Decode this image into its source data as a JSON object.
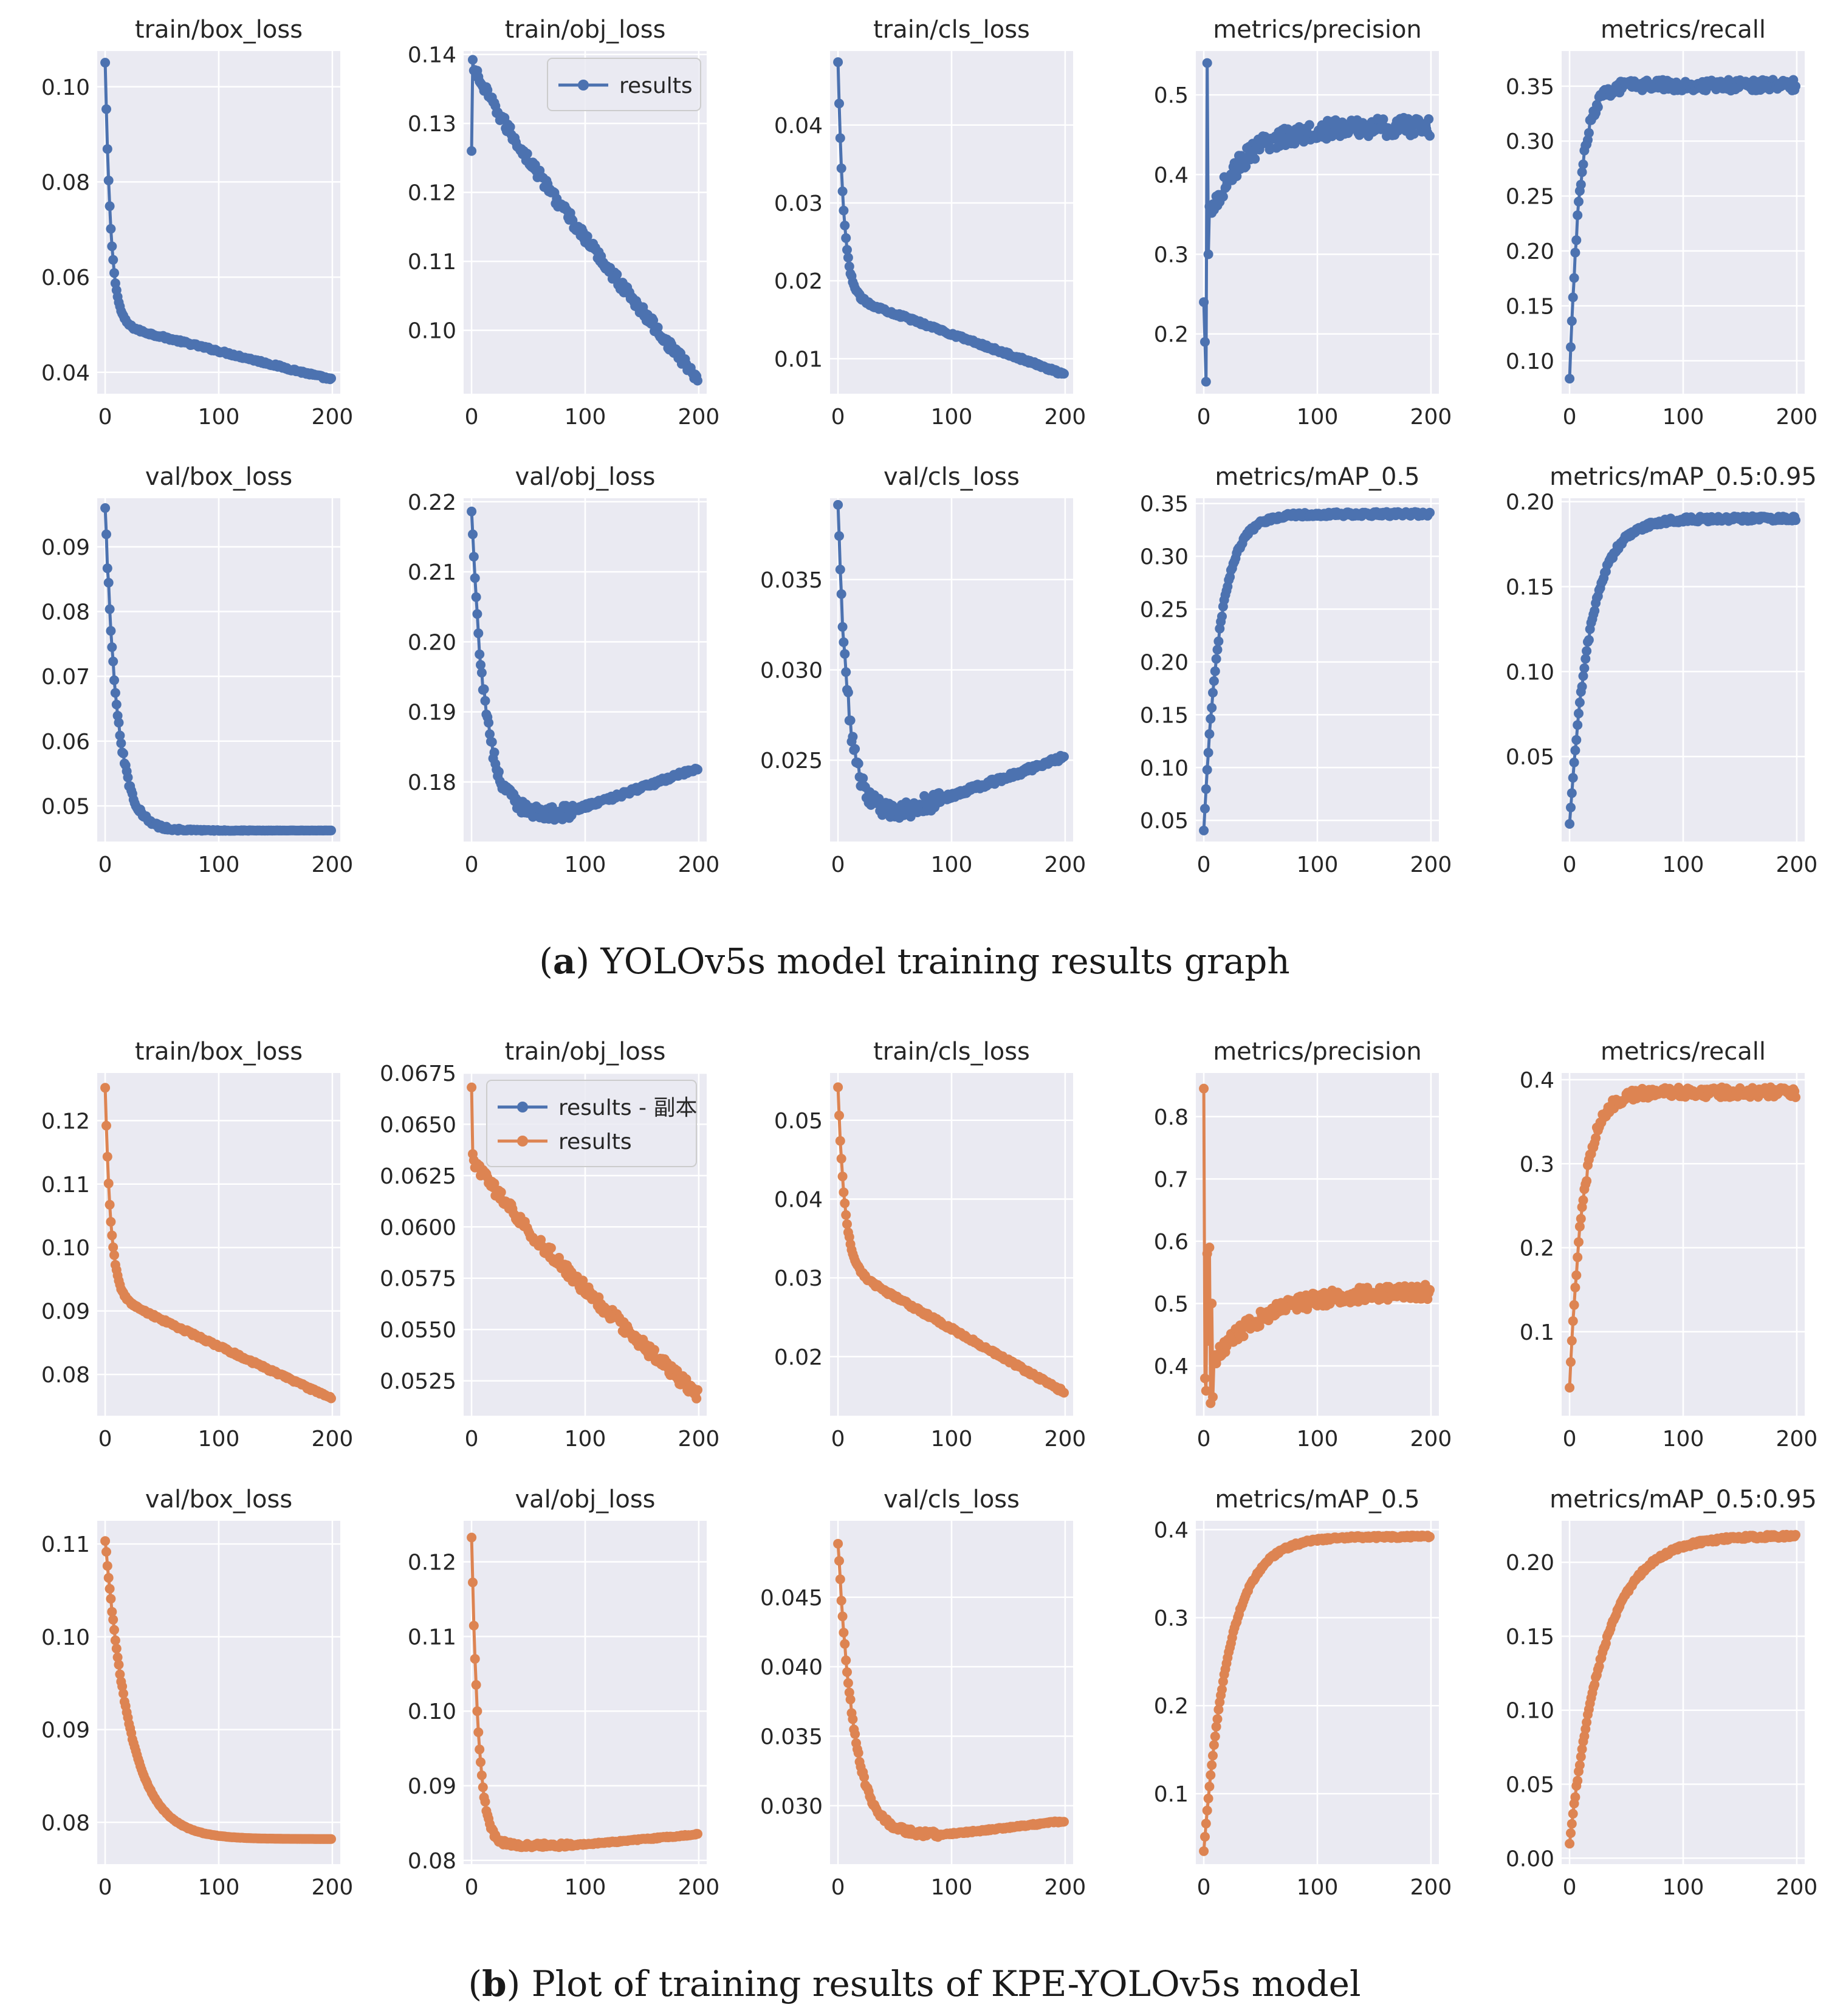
{
  "figure": {
    "sections": [
      {
        "id": "a",
        "caption_letter": "a",
        "caption_text": "YOLOv5s model training results graph",
        "color": "#4c72b0",
        "legend": [
          "results"
        ]
      },
      {
        "id": "b",
        "caption_letter": "b",
        "caption_text": "Plot of training results of KPE-YOLOv5s model",
        "color": "#dd8452",
        "legend": [
          "results - 副本",
          "results"
        ]
      }
    ],
    "colors": {
      "blue": "#4c72b0",
      "orange": "#dd8452",
      "panel_bg": "#eaeaf2",
      "grid": "#ffffff"
    }
  },
  "chart_data": [
    {
      "section": "a",
      "panel": 1,
      "type": "line",
      "title": "train/box_loss",
      "xlabel": "",
      "ylabel": "",
      "xlim": [
        -7,
        207
      ],
      "ylim": [
        0.0355,
        0.1075
      ],
      "xticks": [
        0,
        100,
        200
      ],
      "yticks": [
        0.04,
        0.06,
        0.08,
        0.1
      ],
      "ytick_labels": [
        "0.04",
        "0.06",
        "0.08",
        "0.10"
      ],
      "shape": "decay",
      "params": {
        "y0": 0.105,
        "yend": 0.0385,
        "k": 5,
        "k2": 0.05,
        "drop_frac": 0.82,
        "noise": 0.00025
      },
      "legend": false
    },
    {
      "section": "a",
      "panel": 2,
      "type": "line",
      "title": "train/obj_loss",
      "xlabel": "",
      "ylabel": "",
      "xlim": [
        -7,
        207
      ],
      "ylim": [
        0.0908,
        0.1405
      ],
      "xticks": [
        0,
        100,
        200
      ],
      "yticks": [
        0.1,
        0.11,
        0.12,
        0.13,
        0.14
      ],
      "ytick_labels": [
        "0.10",
        "0.11",
        "0.12",
        "0.13",
        "0.14"
      ],
      "shape": "obj_train",
      "params": {
        "y0": 0.139,
        "yend": 0.093,
        "first": 0.126,
        "noise": 0.0008
      },
      "legend": true
    },
    {
      "section": "a",
      "panel": 3,
      "type": "line",
      "title": "train/cls_loss",
      "xlabel": "",
      "ylabel": "",
      "xlim": [
        -7,
        207
      ],
      "ylim": [
        0.0055,
        0.0495
      ],
      "xticks": [
        0,
        100,
        200
      ],
      "yticks": [
        0.01,
        0.02,
        0.03,
        0.04
      ],
      "ytick_labels": [
        "0.01",
        "0.02",
        "0.03",
        "0.04"
      ],
      "shape": "decay",
      "params": {
        "y0": 0.048,
        "yend": 0.008,
        "k": 5,
        "k2": 0.04,
        "drop_frac": 0.74,
        "noise": 0.0002
      },
      "legend": false
    },
    {
      "section": "a",
      "panel": 4,
      "type": "line",
      "title": "metrics/precision",
      "xlabel": "",
      "ylabel": "",
      "xlim": [
        -7,
        207
      ],
      "ylim": [
        0.125,
        0.555
      ],
      "xticks": [
        0,
        100,
        200
      ],
      "yticks": [
        0.2,
        0.3,
        0.4,
        0.5
      ],
      "ytick_labels": [
        "0.2",
        "0.3",
        "0.4",
        "0.5"
      ],
      "shape": "precision",
      "params": {
        "start": [
          0.24,
          0.19,
          0.14,
          0.54,
          0.3,
          0.36
        ],
        "base": 0.35,
        "final": 0.46,
        "k": 30,
        "noise": 0.012
      },
      "legend": false
    },
    {
      "section": "a",
      "panel": 5,
      "type": "line",
      "title": "metrics/recall",
      "xlabel": "",
      "ylabel": "",
      "xlim": [
        -7,
        207
      ],
      "ylim": [
        0.07,
        0.382
      ],
      "xticks": [
        0,
        100,
        200
      ],
      "yticks": [
        0.1,
        0.15,
        0.2,
        0.25,
        0.3,
        0.35
      ],
      "ytick_labels": [
        "0.10",
        "0.15",
        "0.20",
        "0.25",
        "0.30",
        "0.35"
      ],
      "shape": "rise",
      "params": {
        "y0": 0.083,
        "ymax": 0.351,
        "k": 9,
        "noise": 0.005
      },
      "legend": false
    },
    {
      "section": "a",
      "panel": 6,
      "type": "line",
      "title": "val/box_loss",
      "xlabel": "",
      "ylabel": "",
      "xlim": [
        -7,
        207
      ],
      "ylim": [
        0.0445,
        0.0975
      ],
      "xticks": [
        0,
        100,
        200
      ],
      "yticks": [
        0.05,
        0.06,
        0.07,
        0.08,
        0.09
      ],
      "ytick_labels": [
        "0.05",
        "0.06",
        "0.07",
        "0.08",
        "0.09"
      ],
      "shape": "decay_flat",
      "params": {
        "y0": 0.0955,
        "ymin": 0.0462,
        "k": 11,
        "noise": 0.0009
      },
      "legend": false
    },
    {
      "section": "a",
      "panel": 7,
      "type": "line",
      "title": "val/obj_loss",
      "xlabel": "",
      "ylabel": "",
      "xlim": [
        -7,
        207
      ],
      "ylim": [
        0.1715,
        0.2205
      ],
      "xticks": [
        0,
        100,
        200
      ],
      "yticks": [
        0.18,
        0.19,
        0.2,
        0.21,
        0.22
      ],
      "ytick_labels": [
        "0.18",
        "0.19",
        "0.20",
        "0.21",
        "0.22"
      ],
      "shape": "u_curve",
      "params": {
        "y0": 0.218,
        "ymin": 0.1755,
        "xmin": 78,
        "yend": 0.182,
        "k": 12,
        "noise": 0.001
      },
      "legend": false
    },
    {
      "section": "a",
      "panel": 8,
      "type": "line",
      "title": "val/cls_loss",
      "xlabel": "",
      "ylabel": "",
      "xlim": [
        -7,
        207
      ],
      "ylim": [
        0.0205,
        0.0395
      ],
      "xticks": [
        0,
        100,
        200
      ],
      "yticks": [
        0.025,
        0.03,
        0.035
      ],
      "ytick_labels": [
        "0.025",
        "0.030",
        "0.035"
      ],
      "shape": "u_curve",
      "params": {
        "y0": 0.0388,
        "ymin": 0.0222,
        "xmin": 55,
        "yend": 0.0252,
        "k": 9,
        "noise": 0.0005
      },
      "legend": false
    },
    {
      "section": "a",
      "panel": 9,
      "type": "line",
      "title": "metrics/mAP_0.5",
      "xlabel": "",
      "ylabel": "",
      "xlim": [
        -7,
        207
      ],
      "ylim": [
        0.03,
        0.355
      ],
      "xticks": [
        0,
        100,
        200
      ],
      "yticks": [
        0.05,
        0.1,
        0.15,
        0.2,
        0.25,
        0.3,
        0.35
      ],
      "ytick_labels": [
        "0.05",
        "0.10",
        "0.15",
        "0.20",
        "0.25",
        "0.30",
        "0.35"
      ],
      "shape": "rise",
      "params": {
        "y0": 0.04,
        "ymax": 0.34,
        "k": 14,
        "noise": 0.002
      },
      "legend": false
    },
    {
      "section": "a",
      "panel": 10,
      "type": "line",
      "title": "metrics/mAP_0.5:0.95",
      "xlabel": "",
      "ylabel": "",
      "xlim": [
        -7,
        207
      ],
      "ylim": [
        0.0,
        0.202
      ],
      "xticks": [
        0,
        100,
        200
      ],
      "yticks": [
        0.05,
        0.1,
        0.15,
        0.2
      ],
      "ytick_labels": [
        "0.05",
        "0.10",
        "0.15",
        "0.20"
      ],
      "shape": "rise",
      "params": {
        "y0": 0.01,
        "ymax": 0.19,
        "k": 18,
        "noise": 0.0015
      },
      "legend": false
    },
    {
      "section": "b",
      "panel": 1,
      "type": "line",
      "title": "train/box_loss",
      "xlabel": "",
      "ylabel": "",
      "xlim": [
        -7,
        207
      ],
      "ylim": [
        0.0735,
        0.1275
      ],
      "xticks": [
        0,
        100,
        200
      ],
      "yticks": [
        0.08,
        0.09,
        0.1,
        0.11,
        0.12
      ],
      "ytick_labels": [
        "0.08",
        "0.09",
        "0.10",
        "0.11",
        "0.12"
      ],
      "shape": "decay",
      "params": {
        "y0": 0.125,
        "yend": 0.0762,
        "k": 5,
        "k2": 0.03,
        "drop_frac": 0.66,
        "noise": 0.0002
      },
      "legend": false
    },
    {
      "section": "b",
      "panel": 2,
      "type": "line",
      "title": "train/obj_loss",
      "xlabel": "",
      "ylabel": "",
      "xlim": [
        -7,
        207
      ],
      "ylim": [
        0.0508,
        0.0675
      ],
      "xticks": [
        0,
        100,
        200
      ],
      "yticks": [
        0.0525,
        0.055,
        0.0575,
        0.06,
        0.0625,
        0.065,
        0.0675
      ],
      "ytick_labels": [
        "0.0525",
        "0.0550",
        "0.0575",
        "0.0600",
        "0.0625",
        "0.0650",
        "0.0675"
      ],
      "shape": "obj_train",
      "params": {
        "y0": 0.0635,
        "yend": 0.0518,
        "first": 0.0668,
        "noise": 0.0003
      },
      "legend": true
    },
    {
      "section": "b",
      "panel": 3,
      "type": "line",
      "title": "train/cls_loss",
      "xlabel": "",
      "ylabel": "",
      "xlim": [
        -7,
        207
      ],
      "ylim": [
        0.0125,
        0.056
      ],
      "xticks": [
        0,
        100,
        200
      ],
      "yticks": [
        0.02,
        0.03,
        0.04,
        0.05
      ],
      "ytick_labels": [
        "0.02",
        "0.03",
        "0.04",
        "0.05"
      ],
      "shape": "decay",
      "params": {
        "y0": 0.054,
        "yend": 0.0155,
        "k": 6,
        "k2": 0.03,
        "drop_frac": 0.58,
        "noise": 0.0002
      },
      "legend": false
    },
    {
      "section": "b",
      "panel": 4,
      "type": "line",
      "title": "metrics/precision",
      "xlabel": "",
      "ylabel": "",
      "xlim": [
        -7,
        207
      ],
      "ylim": [
        0.32,
        0.87
      ],
      "xticks": [
        0,
        100,
        200
      ],
      "yticks": [
        0.4,
        0.5,
        0.6,
        0.7,
        0.8
      ],
      "ytick_labels": [
        "0.4",
        "0.5",
        "0.6",
        "0.7",
        "0.8"
      ],
      "shape": "precision",
      "params": {
        "start": [
          0.845,
          0.38,
          0.36,
          0.58,
          0.44,
          0.59,
          0.34,
          0.5,
          0.35
        ],
        "base": 0.41,
        "final": 0.52,
        "k": 45,
        "noise": 0.012
      },
      "legend": false
    },
    {
      "section": "b",
      "panel": 5,
      "type": "line",
      "title": "metrics/recall",
      "xlabel": "",
      "ylabel": "",
      "xlim": [
        -7,
        207
      ],
      "ylim": [
        0.0,
        0.408
      ],
      "xticks": [
        0,
        100,
        200
      ],
      "yticks": [
        0.1,
        0.2,
        0.3,
        0.4
      ],
      "ytick_labels": [
        "0.1",
        "0.2",
        "0.3",
        "0.4"
      ],
      "shape": "rise",
      "params": {
        "y0": 0.035,
        "ymax": 0.385,
        "k": 12,
        "noise": 0.006
      },
      "legend": false
    },
    {
      "section": "b",
      "panel": 6,
      "type": "line",
      "title": "val/box_loss",
      "xlabel": "",
      "ylabel": "",
      "xlim": [
        -7,
        207
      ],
      "ylim": [
        0.0755,
        0.1125
      ],
      "xticks": [
        0,
        100,
        200
      ],
      "yticks": [
        0.08,
        0.09,
        0.1,
        0.11
      ],
      "ytick_labels": [
        "0.08",
        "0.09",
        "0.10",
        "0.11"
      ],
      "shape": "decay_flat",
      "params": {
        "y0": 0.1105,
        "ymin": 0.0782,
        "k": 22,
        "noise": 0.0002
      },
      "legend": false
    },
    {
      "section": "b",
      "panel": 7,
      "type": "line",
      "title": "val/obj_loss",
      "xlabel": "",
      "ylabel": "",
      "xlim": [
        -7,
        207
      ],
      "ylim": [
        0.0795,
        0.1255
      ],
      "xticks": [
        0,
        100,
        200
      ],
      "yticks": [
        0.08,
        0.09,
        0.1,
        0.11,
        0.12
      ],
      "ytick_labels": [
        "0.08",
        "0.09",
        "0.10",
        "0.11",
        "0.12"
      ],
      "shape": "u_curve",
      "params": {
        "y0": 0.1235,
        "ymin": 0.082,
        "xmin": 85,
        "yend": 0.0835,
        "k": 6,
        "noise": 0.0003
      },
      "legend": false
    },
    {
      "section": "b",
      "panel": 8,
      "type": "line",
      "title": "val/cls_loss",
      "xlabel": "",
      "ylabel": "",
      "xlim": [
        -7,
        207
      ],
      "ylim": [
        0.0258,
        0.0505
      ],
      "xticks": [
        0,
        100,
        200
      ],
      "yticks": [
        0.03,
        0.035,
        0.04,
        0.045
      ],
      "ytick_labels": [
        "0.030",
        "0.035",
        "0.040",
        "0.045"
      ],
      "shape": "u_curve",
      "params": {
        "y0": 0.049,
        "ymin": 0.0279,
        "xmin": 88,
        "yend": 0.0289,
        "k": 14,
        "noise": 0.0002
      },
      "legend": false
    },
    {
      "section": "b",
      "panel": 9,
      "type": "line",
      "title": "metrics/mAP_0.5",
      "xlabel": "",
      "ylabel": "",
      "xlim": [
        -7,
        207
      ],
      "ylim": [
        0.02,
        0.41
      ],
      "xticks": [
        0,
        100,
        200
      ],
      "yticks": [
        0.1,
        0.2,
        0.3,
        0.4
      ],
      "ytick_labels": [
        "0.1",
        "0.2",
        "0.3",
        "0.4"
      ],
      "shape": "rise",
      "params": {
        "y0": 0.035,
        "ymax": 0.392,
        "k": 22,
        "noise": 0.0015
      },
      "legend": false
    },
    {
      "section": "b",
      "panel": 10,
      "type": "line",
      "title": "metrics/mAP_0.5:0.95",
      "xlabel": "",
      "ylabel": "",
      "xlim": [
        -7,
        207
      ],
      "ylim": [
        -0.004,
        0.228
      ],
      "xticks": [
        0,
        100,
        200
      ],
      "yticks": [
        0.0,
        0.05,
        0.1,
        0.15,
        0.2
      ],
      "ytick_labels": [
        "0.00",
        "0.05",
        "0.10",
        "0.15",
        "0.20"
      ],
      "shape": "rise",
      "params": {
        "y0": 0.01,
        "ymax": 0.218,
        "k": 30,
        "noise": 0.0012
      },
      "legend": false
    }
  ]
}
